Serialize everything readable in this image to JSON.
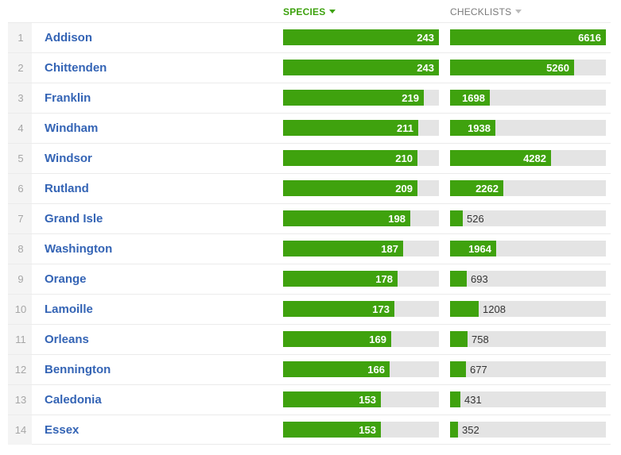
{
  "columns": {
    "species": {
      "label": "SPECIES",
      "active": true,
      "max": 243
    },
    "checklists": {
      "label": "CHECKLISTS",
      "active": false,
      "max": 6616
    }
  },
  "rows": [
    {
      "rank": "1",
      "name": "Addison",
      "species": 243,
      "checklists": 6616
    },
    {
      "rank": "2",
      "name": "Chittenden",
      "species": 243,
      "checklists": 5260
    },
    {
      "rank": "3",
      "name": "Franklin",
      "species": 219,
      "checklists": 1698
    },
    {
      "rank": "4",
      "name": "Windham",
      "species": 211,
      "checklists": 1938
    },
    {
      "rank": "5",
      "name": "Windsor",
      "species": 210,
      "checklists": 4282
    },
    {
      "rank": "6",
      "name": "Rutland",
      "species": 209,
      "checklists": 2262
    },
    {
      "rank": "7",
      "name": "Grand Isle",
      "species": 198,
      "checklists": 526
    },
    {
      "rank": "8",
      "name": "Washington",
      "species": 187,
      "checklists": 1964
    },
    {
      "rank": "9",
      "name": "Orange",
      "species": 178,
      "checklists": 693
    },
    {
      "rank": "10",
      "name": "Lamoille",
      "species": 173,
      "checklists": 1208
    },
    {
      "rank": "11",
      "name": "Orleans",
      "species": 169,
      "checklists": 758
    },
    {
      "rank": "12",
      "name": "Bennington",
      "species": 166,
      "checklists": 677
    },
    {
      "rank": "13",
      "name": "Caledonia",
      "species": 153,
      "checklists": 431
    },
    {
      "rank": "14",
      "name": "Essex",
      "species": 153,
      "checklists": 352
    }
  ],
  "colors": {
    "bar": "#3fa20e",
    "track": "#e4e4e4",
    "link": "#3464b5",
    "active_header": "#3ea20f"
  }
}
